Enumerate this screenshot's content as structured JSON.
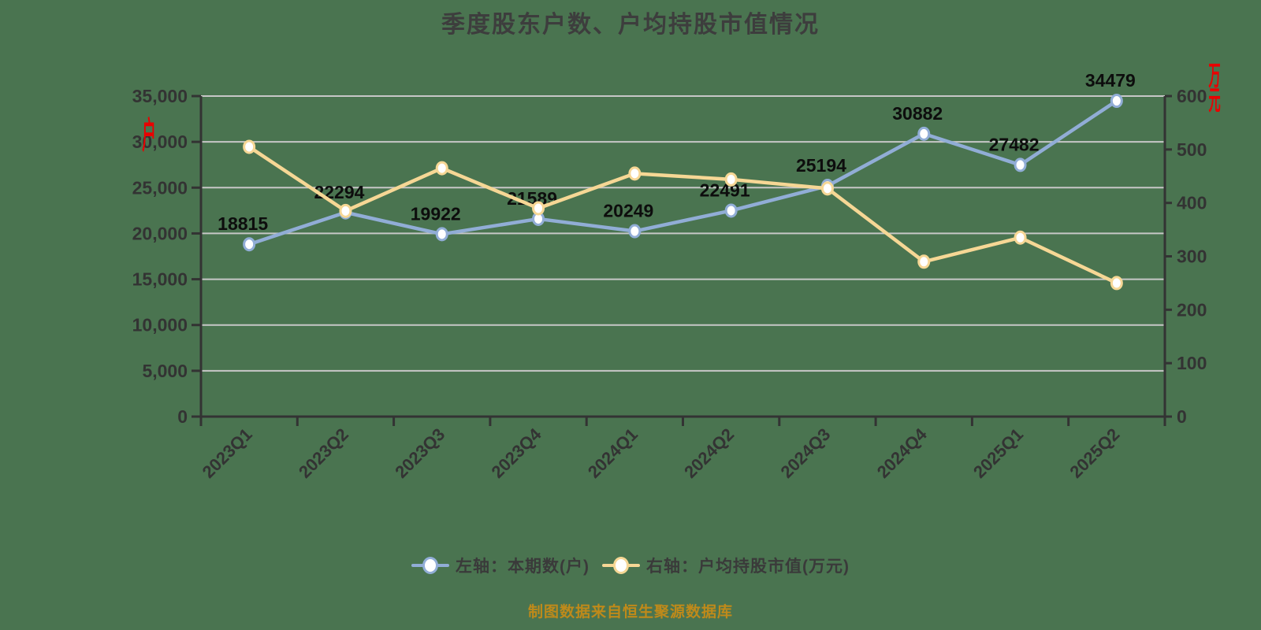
{
  "title": {
    "text": "季度股东户数、户均持股市值情况"
  },
  "footer": {
    "text": "制图数据来自恒生聚源数据库"
  },
  "colors": {
    "background": "#4a7450",
    "title_text": "#3d3d3d",
    "axis_line": "#333333",
    "grid_line": "#c7c7c7",
    "tick_text": "#333333",
    "data_label": "#0d0d0d",
    "unit_text": "#ea0000",
    "footer_text": "#bf8a1a",
    "legend_text": "#3a3a3a",
    "series_blue": "#91add6",
    "series_yellow": "#f6d795",
    "marker_fill": "#ffffff"
  },
  "chart_data": {
    "type": "line",
    "title": "季度股东户数、户均持股市值情况",
    "categories": [
      "2023Q1",
      "2023Q2",
      "2023Q3",
      "2023Q4",
      "2024Q1",
      "2024Q2",
      "2024Q3",
      "2024Q4",
      "2025Q1",
      "2025Q2"
    ],
    "series": [
      {
        "name": "左轴：本期数(户)",
        "axis": "left",
        "color": "#91add6",
        "values": [
          18815,
          22294,
          19922,
          21589,
          20249,
          22491,
          25194,
          30882,
          27482,
          34479
        ],
        "data_labels": true
      },
      {
        "name": "右轴：户均持股市值(万元)",
        "axis": "right",
        "color": "#f6d795",
        "values": [
          505,
          385,
          465,
          390,
          455,
          444,
          427,
          290,
          335,
          250
        ],
        "data_labels": false
      }
    ],
    "left_axis": {
      "unit": "户",
      "min": 0,
      "max": 35000,
      "step": 5000,
      "tick_labels": [
        "0",
        "5,000",
        "10,000",
        "15,000",
        "20,000",
        "25,000",
        "30,000",
        "35,000"
      ]
    },
    "right_axis": {
      "unit": "万元",
      "min": 0,
      "max": 600,
      "step": 100,
      "tick_labels": [
        "0",
        "100",
        "200",
        "300",
        "400",
        "500",
        "600"
      ]
    },
    "grid": true,
    "legend_position": "bottom"
  }
}
